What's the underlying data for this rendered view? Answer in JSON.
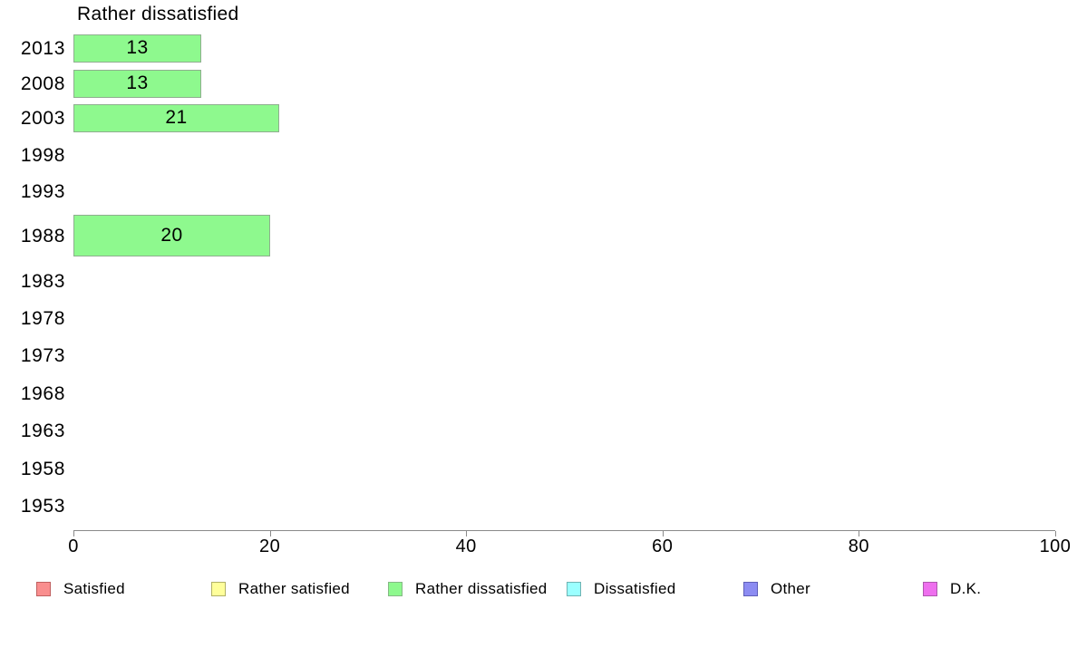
{
  "chart_data": {
    "type": "bar",
    "orientation": "horizontal",
    "title": "Rather dissatisfied",
    "categories": [
      "2013",
      "2008",
      "2003",
      "1998",
      "1993",
      "1988",
      "1983",
      "1978",
      "1973",
      "1968",
      "1963",
      "1958",
      "1953"
    ],
    "values": [
      13,
      13,
      21,
      null,
      null,
      20,
      null,
      null,
      null,
      null,
      null,
      null,
      null
    ],
    "xlim": [
      0,
      100
    ],
    "x_ticks": [
      0,
      20,
      40,
      60,
      80,
      100
    ],
    "grid": "off",
    "bar_color": "#8EF98E",
    "bar_border_color": "#8FAE8F",
    "axis_color": "#8a8a8a",
    "legend_position": "bottom",
    "legend": [
      {
        "label": "Satisfied",
        "color": "#F98E8E",
        "border": "#C06060"
      },
      {
        "label": "Rather satisfied",
        "color": "#FFFF9B",
        "border": "#B1B166"
      },
      {
        "label": "Rather dissatisfied",
        "color": "#8EF98E",
        "border": "#85B885"
      },
      {
        "label": "Dissatisfied",
        "color": "#9BFFFF",
        "border": "#6FB3B3"
      },
      {
        "label": "Other",
        "color": "#8C8CF2",
        "border": "#5F5FB8"
      },
      {
        "label": "D.K.",
        "color": "#EE6FEE",
        "border": "#AE58AE"
      }
    ]
  }
}
